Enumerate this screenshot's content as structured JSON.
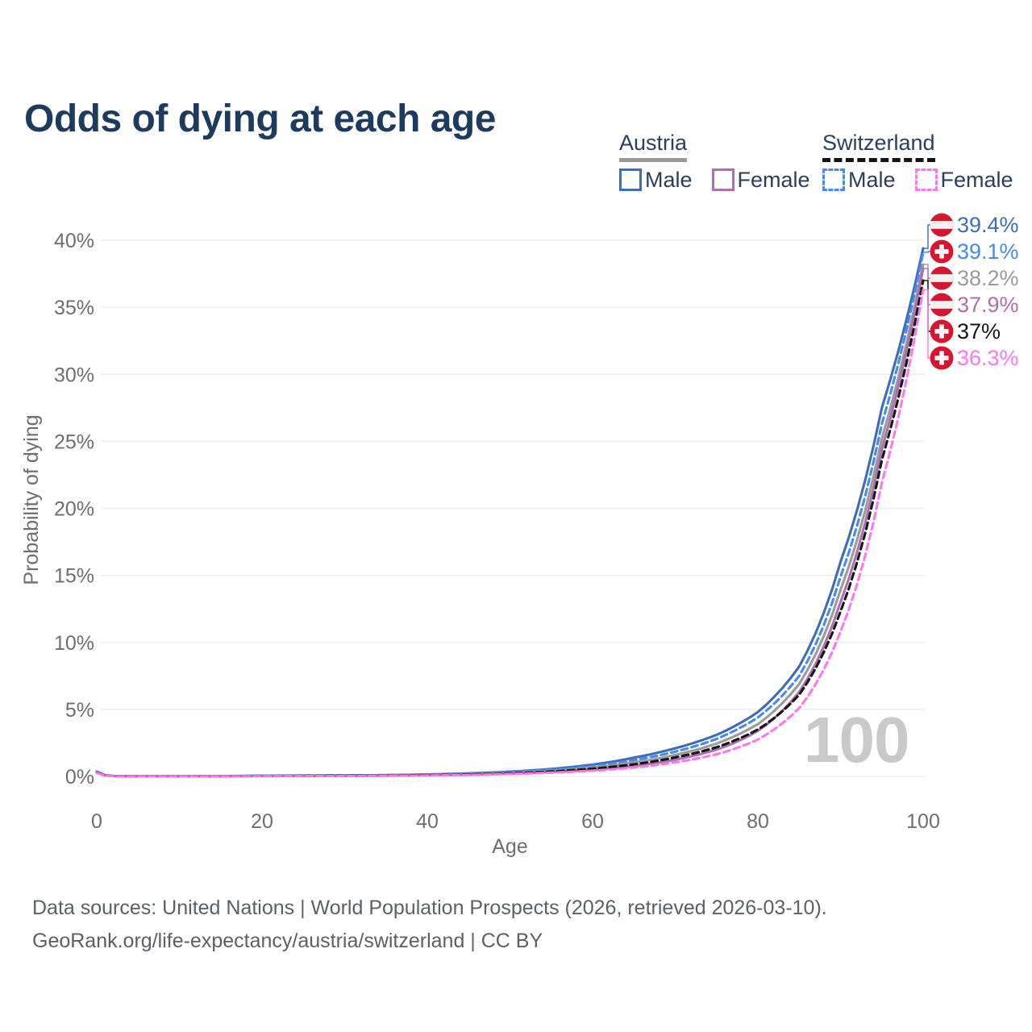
{
  "title": "Odds of dying at each age",
  "watermark_age": "100",
  "legend": {
    "groups": [
      {
        "label": "Austria",
        "underline_color": "#999999",
        "underline_style": "solid",
        "items": [
          {
            "label": "Male",
            "color": "#3e6db4",
            "dash": false
          },
          {
            "label": "Female",
            "color": "#ad6fad",
            "dash": false
          }
        ]
      },
      {
        "label": "Switzerland",
        "underline_color": "#141414",
        "underline_style": "dashed",
        "items": [
          {
            "label": "Male",
            "color": "#4489f4",
            "dash": true
          },
          {
            "label": "Female",
            "color": "#fb78e8",
            "dash": true
          }
        ]
      }
    ]
  },
  "footer": {
    "line1": "Data sources: United Nations | World Population Prospects (2026, retrieved 2026-03-10).",
    "line2": "GeoRank.org/life-expectancy/austria/switzerland | CC BY"
  },
  "chart_data": {
    "type": "line",
    "title": "Odds of dying at each age",
    "xlabel": "Age",
    "ylabel": "Probability of dying",
    "xlim": [
      0,
      100
    ],
    "ylim": [
      0,
      40
    ],
    "xticks": [
      0,
      20,
      40,
      60,
      80,
      100
    ],
    "yticks": [
      0,
      5,
      10,
      15,
      20,
      25,
      30,
      35,
      40
    ],
    "ytick_suffix": "%",
    "grid": true,
    "legend_position": "top-right",
    "x_ages": [
      0,
      2,
      5,
      10,
      15,
      20,
      25,
      30,
      35,
      40,
      45,
      50,
      55,
      60,
      65,
      70,
      75,
      80,
      85,
      90,
      95,
      100
    ],
    "series": [
      {
        "name": "Austria Male",
        "country": "Austria",
        "sex": "Male",
        "flag": "austria",
        "color": "#3e6db4",
        "dash": false,
        "end_label": "39.4%",
        "end_value": 39.4,
        "values": [
          0.36,
          0.03,
          0.012,
          0.01,
          0.025,
          0.06,
          0.07,
          0.08,
          0.1,
          0.15,
          0.23,
          0.36,
          0.56,
          0.88,
          1.4,
          2.1,
          3.1,
          4.8,
          8.2,
          16.0,
          27.5,
          39.4
        ]
      },
      {
        "name": "Switzerland Male",
        "country": "Switzerland",
        "sex": "Male",
        "flag": "switzerland",
        "color": "#4489f4",
        "dash": true,
        "end_label": "39.1%",
        "end_value": 39.1,
        "values": [
          0.33,
          0.028,
          0.011,
          0.009,
          0.022,
          0.055,
          0.065,
          0.072,
          0.09,
          0.135,
          0.2,
          0.32,
          0.5,
          0.78,
          1.22,
          1.85,
          2.8,
          4.4,
          7.5,
          14.9,
          26.3,
          39.1
        ]
      },
      {
        "name": "Austria",
        "country": "Austria",
        "sex": "Both",
        "flag": "austria",
        "color": "#9b9b9b",
        "dash": false,
        "end_label": "38.2%",
        "end_value": 38.2,
        "values": [
          0.31,
          0.025,
          0.01,
          0.008,
          0.018,
          0.042,
          0.05,
          0.058,
          0.075,
          0.11,
          0.17,
          0.27,
          0.42,
          0.66,
          1.04,
          1.6,
          2.45,
          3.9,
          6.9,
          13.9,
          25.2,
          38.2
        ]
      },
      {
        "name": "Austria Female",
        "country": "Austria",
        "sex": "Female",
        "flag": "austria",
        "color": "#ad6fad",
        "dash": false,
        "end_label": "37.9%",
        "end_value": 37.9,
        "values": [
          0.29,
          0.022,
          0.009,
          0.007,
          0.013,
          0.025,
          0.032,
          0.04,
          0.055,
          0.085,
          0.13,
          0.21,
          0.33,
          0.5,
          0.78,
          1.25,
          2.0,
          3.4,
          6.3,
          13.0,
          24.4,
          37.9
        ]
      },
      {
        "name": "Switzerland",
        "country": "Switzerland",
        "sex": "Both",
        "flag": "switzerland",
        "color": "#161616",
        "dash": true,
        "end_label": "37%",
        "end_value": 37.0,
        "values": [
          0.28,
          0.022,
          0.009,
          0.007,
          0.015,
          0.035,
          0.042,
          0.05,
          0.065,
          0.095,
          0.145,
          0.235,
          0.37,
          0.58,
          0.9,
          1.42,
          2.18,
          3.5,
          6.1,
          12.3,
          23.6,
          37.0
        ]
      },
      {
        "name": "Switzerland Female",
        "country": "Switzerland",
        "sex": "Female",
        "flag": "switzerland",
        "color": "#fb78e8",
        "dash": true,
        "end_label": "36.3%",
        "end_value": 36.3,
        "values": [
          0.26,
          0.02,
          0.008,
          0.006,
          0.011,
          0.02,
          0.027,
          0.034,
          0.047,
          0.072,
          0.11,
          0.18,
          0.28,
          0.43,
          0.66,
          1.05,
          1.65,
          2.75,
          5.1,
          10.8,
          21.9,
          36.3
        ]
      }
    ],
    "flag_colors": {
      "austria_red": "#d11a32",
      "austria_white": "#f2f2f2",
      "switzerland_red": "#d6162e",
      "switzerland_cross": "#ffffff"
    }
  }
}
